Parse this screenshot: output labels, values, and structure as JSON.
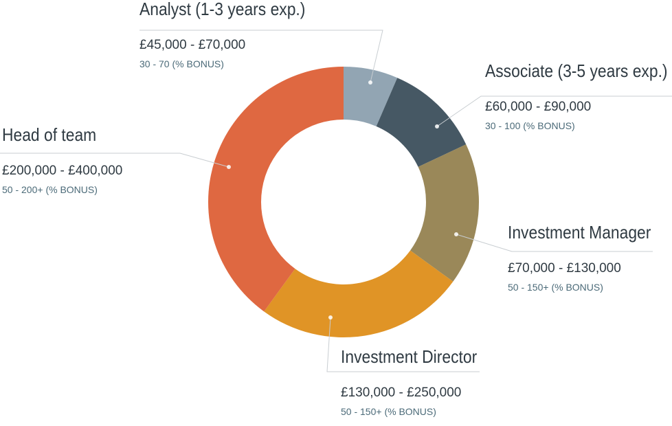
{
  "chart_data": {
    "type": "pie",
    "donut": true,
    "slices": [
      {
        "label": "Analyst (1-3 years exp.)",
        "salary": "£45,000 - £70,000",
        "bonus": "30 - 70 (% BONUS)",
        "value": 6.5,
        "color": "#92a5b3"
      },
      {
        "label": "Associate (3-5 years exp.)",
        "salary": "£60,000 - £90,000",
        "bonus": "30 - 100 (% BONUS)",
        "value": 11.5,
        "color": "#465864"
      },
      {
        "label": "Investment Manager",
        "salary": "£70,000 - £130,000",
        "bonus": "50 - 150+ (% BONUS)",
        "value": 17,
        "color": "#9a8859"
      },
      {
        "label": "Investment Director",
        "salary": "£130,000 - £250,000",
        "bonus": "50 - 150+ (% BONUS)",
        "value": 25,
        "color": "#e09426"
      },
      {
        "label": "Head of team",
        "salary": "£200,000 - £400,000",
        "bonus": "50 - 200+ (% BONUS)",
        "value": 40,
        "color": "#df6841"
      }
    ]
  }
}
